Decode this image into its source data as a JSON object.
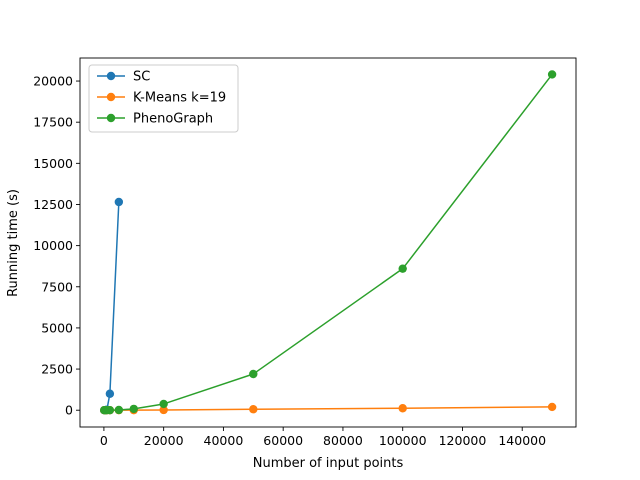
{
  "chart_data": {
    "type": "line",
    "xlabel": "Number of input points",
    "ylabel": "Running time (s)",
    "xlim": [
      -8000,
      158000
    ],
    "ylim": [
      -1020,
      21400
    ],
    "x_ticks": [
      0,
      20000,
      40000,
      60000,
      80000,
      100000,
      120000,
      140000
    ],
    "y_ticks": [
      0,
      2500,
      5000,
      7500,
      10000,
      12500,
      15000,
      17500,
      20000
    ],
    "grid": false,
    "legend_position": "top-left",
    "series": [
      {
        "name": "SC",
        "color": "#1f77b4",
        "x": [
          100,
          500,
          1000,
          2000,
          5000
        ],
        "y": [
          0,
          5,
          30,
          1000,
          12650
        ]
      },
      {
        "name": "K-Means k=19",
        "color": "#ff7f0e",
        "x": [
          100,
          500,
          1000,
          2000,
          5000,
          10000,
          20000,
          50000,
          100000,
          150000
        ],
        "y": [
          0,
          0,
          0,
          0,
          2,
          5,
          15,
          60,
          120,
          200
        ]
      },
      {
        "name": "PhenoGraph",
        "color": "#2ca02c",
        "x": [
          100,
          500,
          1000,
          2000,
          5000,
          10000,
          20000,
          50000,
          100000,
          150000
        ],
        "y": [
          0,
          0,
          1,
          3,
          15,
          80,
          380,
          2200,
          8600,
          20400
        ]
      }
    ]
  }
}
